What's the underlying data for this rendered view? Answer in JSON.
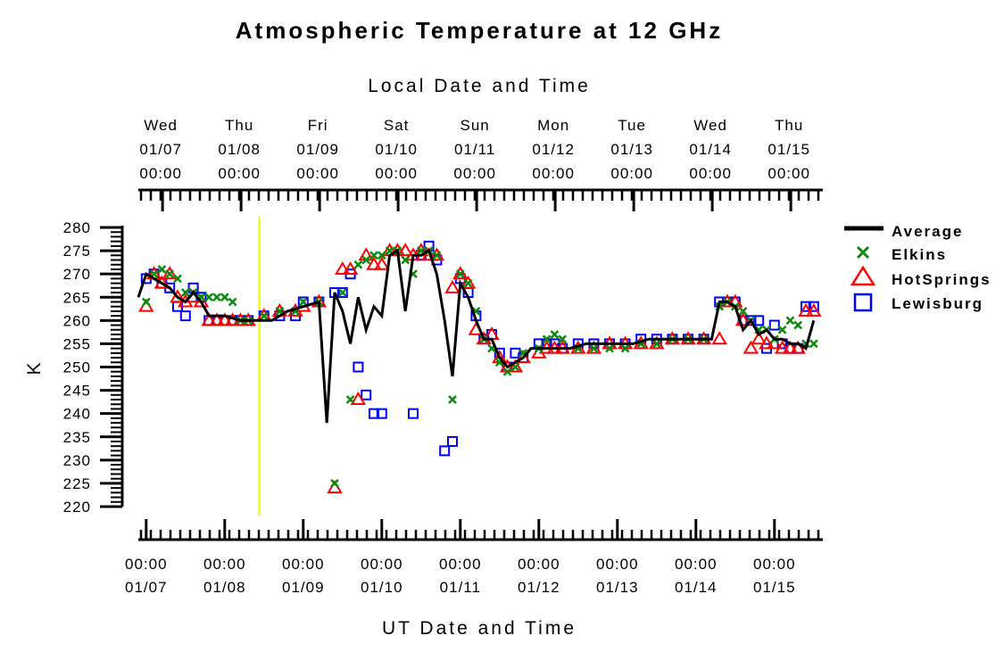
{
  "chart_data": {
    "type": "line",
    "title": "Atmospheric Temperature at 12 GHz",
    "top_axis_label": "Local Date and Time",
    "xlabel": "UT Date and Time",
    "ylabel": "K",
    "ylim": [
      220,
      280
    ],
    "yticks": [
      280,
      275,
      270,
      265,
      260,
      255,
      250,
      245,
      240,
      235,
      230,
      225,
      220
    ],
    "xlim_ut_days": [
      6.9,
      15.6
    ],
    "marker_line_ut_day": 8.44,
    "grid": false,
    "legend_position": "right",
    "colors": {
      "average": "#000000",
      "elkins": "#0a8a0a",
      "hotsprings": "#ff0000",
      "lewisburg": "#0000ff",
      "marker_line": "#ffff00"
    },
    "local_ticks": [
      {
        "day": "Wed",
        "date": "01/07",
        "time": "00:00"
      },
      {
        "day": "Thu",
        "date": "01/08",
        "time": "00:00"
      },
      {
        "day": "Fri",
        "date": "01/09",
        "time": "00:00"
      },
      {
        "day": "Sat",
        "date": "01/10",
        "time": "00:00"
      },
      {
        "day": "Sun",
        "date": "01/11",
        "time": "00:00"
      },
      {
        "day": "Mon",
        "date": "01/12",
        "time": "00:00"
      },
      {
        "day": "Tue",
        "date": "01/13",
        "time": "00:00"
      },
      {
        "day": "Wed",
        "date": "01/14",
        "time": "00:00"
      },
      {
        "day": "Thu",
        "date": "01/15",
        "time": "00:00"
      }
    ],
    "ut_ticks": [
      {
        "time": "00:00",
        "date": "01/07"
      },
      {
        "time": "00:00",
        "date": "01/08"
      },
      {
        "time": "00:00",
        "date": "01/09"
      },
      {
        "time": "00:00",
        "date": "01/10"
      },
      {
        "time": "00:00",
        "date": "01/11"
      },
      {
        "time": "00:00",
        "date": "01/12"
      },
      {
        "time": "00:00",
        "date": "01/13"
      },
      {
        "time": "00:00",
        "date": "01/14"
      },
      {
        "time": "00:00",
        "date": "01/15"
      }
    ],
    "series": [
      {
        "name": "Average",
        "style": "line",
        "x": [
          6.9,
          7.0,
          7.1,
          7.2,
          7.3,
          7.4,
          7.5,
          7.6,
          7.7,
          7.8,
          8.0,
          8.2,
          8.4,
          8.6,
          8.8,
          9.0,
          9.2,
          9.3,
          9.4,
          9.5,
          9.6,
          9.7,
          9.8,
          9.9,
          10.0,
          10.1,
          10.2,
          10.3,
          10.4,
          10.5,
          10.6,
          10.7,
          10.8,
          10.9,
          11.0,
          11.1,
          11.2,
          11.3,
          11.4,
          11.5,
          11.6,
          11.7,
          11.8,
          11.9,
          12.0,
          12.1,
          12.2,
          12.3,
          12.4,
          12.6,
          12.8,
          13.0,
          13.2,
          13.4,
          13.6,
          13.8,
          14.0,
          14.2,
          14.3,
          14.4,
          14.5,
          14.6,
          14.7,
          14.8,
          14.9,
          15.0,
          15.1,
          15.2,
          15.3,
          15.4,
          15.5
        ],
        "y": [
          265,
          270,
          269,
          268,
          267,
          265,
          264,
          266,
          264,
          261,
          261,
          260,
          260,
          260,
          262,
          263,
          264,
          238,
          266,
          262,
          255,
          265,
          258,
          263,
          261,
          274,
          275,
          262,
          274,
          274,
          275,
          270,
          260,
          248,
          268,
          265,
          260,
          256,
          256,
          252,
          250,
          251,
          252,
          254,
          254,
          254,
          254,
          254,
          254,
          255,
          255,
          255,
          255,
          256,
          256,
          256,
          256,
          256,
          264,
          264,
          263,
          258,
          260,
          257,
          258,
          256,
          256,
          255,
          255,
          254,
          260
        ]
      },
      {
        "name": "Elkins",
        "style": "x",
        "x": [
          7.0,
          7.1,
          7.2,
          7.3,
          7.4,
          7.5,
          7.6,
          7.7,
          7.8,
          7.9,
          8.0,
          8.1,
          8.2,
          8.3,
          8.5,
          8.7,
          8.9,
          9.0,
          9.2,
          9.4,
          9.5,
          9.6,
          9.7,
          9.8,
          9.9,
          10.0,
          10.1,
          10.2,
          10.3,
          10.4,
          10.5,
          10.6,
          10.7,
          10.9,
          11.0,
          11.1,
          11.2,
          11.3,
          11.4,
          11.5,
          11.6,
          11.7,
          11.8,
          12.0,
          12.1,
          12.2,
          12.3,
          12.5,
          12.7,
          12.9,
          13.1,
          13.3,
          13.5,
          13.7,
          13.9,
          14.1,
          14.3,
          14.4,
          14.5,
          14.6,
          14.7,
          14.8,
          14.9,
          15.0,
          15.1,
          15.2,
          15.3,
          15.4,
          15.5
        ],
        "y": [
          264,
          270,
          271,
          270,
          269,
          266,
          266,
          265,
          265,
          265,
          265,
          264,
          260,
          260,
          261,
          262,
          262,
          264,
          264,
          225,
          266,
          243,
          272,
          273,
          274,
          274,
          275,
          275,
          273,
          270,
          275,
          275,
          274,
          243,
          270,
          268,
          262,
          256,
          254,
          251,
          249,
          250,
          253,
          254,
          256,
          257,
          256,
          254,
          254,
          254,
          254,
          255,
          255,
          256,
          256,
          256,
          263,
          264,
          263,
          262,
          260,
          258,
          258,
          256,
          258,
          260,
          259,
          255,
          255
        ]
      },
      {
        "name": "HotSprings",
        "style": "triangle",
        "x": [
          7.0,
          7.1,
          7.2,
          7.3,
          7.4,
          7.5,
          7.6,
          7.7,
          7.8,
          7.9,
          8.0,
          8.1,
          8.2,
          8.3,
          8.5,
          8.7,
          8.9,
          9.0,
          9.2,
          9.4,
          9.5,
          9.6,
          9.7,
          9.8,
          9.9,
          10.0,
          10.1,
          10.2,
          10.3,
          10.4,
          10.5,
          10.6,
          10.7,
          10.9,
          11.0,
          11.1,
          11.2,
          11.3,
          11.4,
          11.5,
          11.6,
          11.7,
          11.8,
          12.0,
          12.1,
          12.2,
          12.3,
          12.5,
          12.7,
          12.9,
          13.1,
          13.3,
          13.5,
          13.7,
          13.9,
          14.1,
          14.3,
          14.4,
          14.5,
          14.6,
          14.7,
          14.8,
          14.9,
          15.0,
          15.1,
          15.2,
          15.3,
          15.4,
          15.5
        ],
        "y": [
          263,
          270,
          268,
          270,
          265,
          264,
          265,
          264,
          260,
          260,
          260,
          260,
          260,
          260,
          261,
          262,
          262,
          263,
          264,
          224,
          271,
          271,
          243,
          274,
          272,
          272,
          275,
          275,
          275,
          274,
          275,
          274,
          274,
          267,
          270,
          268,
          258,
          256,
          257,
          252,
          250,
          250,
          252,
          253,
          254,
          254,
          254,
          254,
          254,
          255,
          255,
          255,
          255,
          256,
          256,
          256,
          256,
          264,
          264,
          260,
          254,
          256,
          255,
          255,
          254,
          254,
          254,
          262,
          262
        ]
      },
      {
        "name": "Lewisburg",
        "style": "square",
        "x": [
          7.0,
          7.1,
          7.2,
          7.3,
          7.4,
          7.5,
          7.6,
          7.7,
          7.8,
          7.9,
          8.0,
          8.1,
          8.2,
          8.3,
          8.5,
          8.7,
          8.9,
          9.0,
          9.2,
          9.4,
          9.5,
          9.6,
          9.7,
          9.8,
          9.9,
          10.0,
          10.4,
          10.5,
          10.6,
          10.7,
          10.8,
          10.9,
          11.0,
          11.1,
          11.2,
          11.3,
          11.4,
          11.5,
          11.6,
          11.7,
          11.8,
          12.0,
          12.1,
          12.2,
          12.3,
          12.5,
          12.7,
          12.9,
          13.1,
          13.3,
          13.5,
          13.7,
          13.9,
          14.1,
          14.3,
          14.4,
          14.5,
          14.6,
          14.7,
          14.8,
          14.9,
          15.0,
          15.1,
          15.2,
          15.3,
          15.4,
          15.5
        ],
        "y": [
          269,
          270,
          268,
          267,
          263,
          261,
          267,
          265,
          260,
          260,
          260,
          260,
          260,
          260,
          261,
          261,
          261,
          264,
          264,
          266,
          266,
          270,
          250,
          244,
          240,
          240,
          240,
          274,
          276,
          273,
          232,
          234,
          269,
          266,
          261,
          256,
          257,
          253,
          250,
          253,
          252,
          255,
          255,
          255,
          254,
          255,
          255,
          255,
          255,
          256,
          256,
          256,
          256,
          256,
          264,
          264,
          264,
          260,
          260,
          260,
          254,
          259,
          255,
          254,
          254,
          263,
          263
        ]
      }
    ]
  }
}
